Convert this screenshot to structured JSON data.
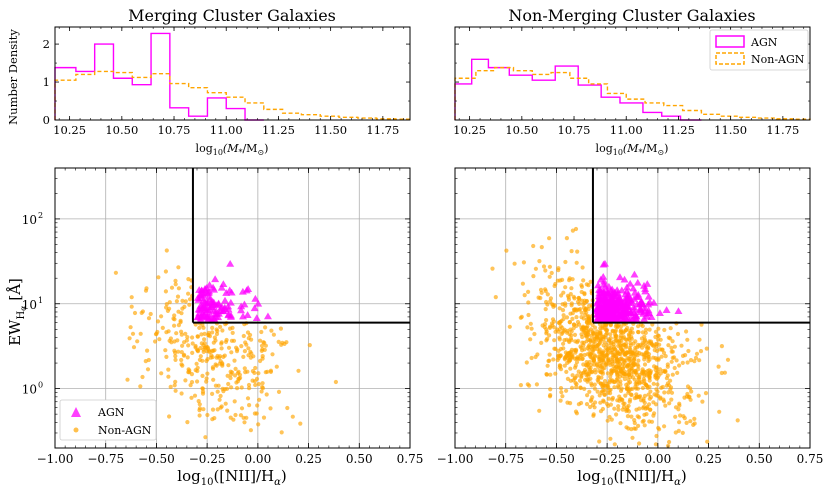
{
  "chart_data": [
    {
      "id": "hist-merging",
      "type": "histogram",
      "title": "Merging Cluster Galaxies",
      "xlabel": "log10(M*/M⊙)",
      "ylabel": "Number Density",
      "xlim": [
        10.18,
        11.88
      ],
      "ylim": [
        0,
        2.45
      ],
      "xticks": [
        10.25,
        10.5,
        10.75,
        11.0,
        11.25,
        11.5,
        11.75
      ],
      "xtick_labels": [
        "10.25",
        "10.50",
        "10.75",
        "11.00",
        "11.25",
        "11.50",
        "11.75"
      ],
      "yticks": [
        0,
        1,
        2
      ],
      "ytick_labels": [
        "0",
        "1",
        "2"
      ],
      "series": [
        {
          "name": "AGN",
          "style": "solid",
          "color": "#ff00ff",
          "edges": [
            10.18,
            10.28,
            10.37,
            10.46,
            10.55,
            10.64,
            10.73,
            10.82,
            10.91,
            11.0,
            11.09,
            11.18
          ],
          "values": [
            1.38,
            1.28,
            2.0,
            1.1,
            0.93,
            2.28,
            0.32,
            0.1,
            0.58,
            0.3,
            0.0
          ]
        },
        {
          "name": "Non-AGN",
          "style": "dashed",
          "color": "#ffa500",
          "edges": [
            10.18,
            10.28,
            10.37,
            10.46,
            10.55,
            10.64,
            10.73,
            10.82,
            10.91,
            11.0,
            11.09,
            11.18,
            11.27,
            11.36,
            11.45,
            11.54,
            11.63,
            11.72,
            11.81,
            11.88
          ],
          "values": [
            1.05,
            1.2,
            1.28,
            1.25,
            1.12,
            1.22,
            0.96,
            0.85,
            0.72,
            0.6,
            0.45,
            0.28,
            0.18,
            0.14,
            0.1,
            0.07,
            0.05,
            0.03,
            0.02
          ]
        }
      ]
    },
    {
      "id": "hist-nonmerging",
      "type": "histogram",
      "title": "Non-Merging Cluster Galaxies",
      "xlabel": "log10(M*/M⊙)",
      "ylabel": "",
      "xlim": [
        10.18,
        11.88
      ],
      "ylim": [
        0,
        2.45
      ],
      "xticks": [
        10.25,
        10.5,
        10.75,
        11.0,
        11.25,
        11.5,
        11.75
      ],
      "xtick_labels": [
        "10.25",
        "10.50",
        "10.75",
        "11.00",
        "11.25",
        "11.50",
        "11.75"
      ],
      "yticks": [
        0,
        1,
        2
      ],
      "ytick_labels": [
        "",
        "",
        ""
      ],
      "legend": {
        "position": "top-right",
        "entries": [
          "AGN",
          "Non-AGN"
        ]
      },
      "series": [
        {
          "name": "AGN",
          "style": "solid",
          "color": "#ff00ff",
          "edges": [
            10.18,
            10.26,
            10.34,
            10.44,
            10.55,
            10.66,
            10.77,
            10.88,
            10.97,
            11.08,
            11.17,
            11.26,
            11.36
          ],
          "values": [
            0.95,
            1.6,
            1.38,
            1.18,
            1.05,
            1.42,
            0.92,
            0.6,
            0.45,
            0.2,
            0.1,
            0.0
          ]
        },
        {
          "name": "Non-AGN",
          "style": "dashed",
          "color": "#ffa500",
          "edges": [
            10.18,
            10.28,
            10.37,
            10.46,
            10.55,
            10.64,
            10.73,
            10.82,
            10.91,
            11.0,
            11.09,
            11.18,
            11.27,
            11.36,
            11.45,
            11.54,
            11.63,
            11.72,
            11.81,
            11.88
          ],
          "values": [
            1.1,
            1.3,
            1.38,
            1.3,
            1.2,
            1.25,
            1.1,
            0.95,
            0.7,
            0.55,
            0.45,
            0.38,
            0.25,
            0.15,
            0.1,
            0.07,
            0.05,
            0.03,
            0.02
          ]
        }
      ]
    },
    {
      "id": "bpt-merging",
      "type": "scatter",
      "xlabel": "log10([NII]/Hα)",
      "ylabel": "EW_Hα [Å]",
      "xlim": [
        -1.0,
        0.75
      ],
      "ylim_log10": [
        -0.7,
        2.6
      ],
      "yscale": "log",
      "xticks": [
        -1.0,
        -0.75,
        -0.5,
        -0.25,
        0.0,
        0.25,
        0.5,
        0.75
      ],
      "xtick_labels": [
        "−1.00",
        "−0.75",
        "−0.50",
        "−0.25",
        "0.00",
        "0.25",
        "0.50",
        "0.75"
      ],
      "yticks_log10": [
        0,
        1,
        2
      ],
      "ytick_labels": [
        "10",
        "10",
        "10"
      ],
      "ytick_exponents": [
        "0",
        "1",
        "2"
      ],
      "boundary": {
        "x": -0.32,
        "y": 6
      },
      "legend": {
        "position": "bottom-left",
        "entries": [
          "AGN",
          "Non-AGN"
        ]
      },
      "agn_count": 110,
      "nonagn_count": 420
    },
    {
      "id": "bpt-nonmerging",
      "type": "scatter",
      "xlabel": "log10([NII]/Hα)",
      "ylabel": "",
      "xlim": [
        -1.0,
        0.75
      ],
      "ylim_log10": [
        -0.7,
        2.6
      ],
      "yscale": "log",
      "xticks": [
        -1.0,
        -0.75,
        -0.5,
        -0.25,
        0.0,
        0.25,
        0.5,
        0.75
      ],
      "xtick_labels": [
        "−1.00",
        "−0.75",
        "−0.50",
        "−0.25",
        "0.00",
        "0.25",
        "0.50",
        "0.75"
      ],
      "yticks_log10": [
        0,
        1,
        2
      ],
      "boundary": {
        "x": -0.32,
        "y": 6
      },
      "agn_count": 300,
      "nonagn_count": 1300
    }
  ],
  "labels": {
    "title_left": "Merging Cluster Galaxies",
    "title_right": "Non-Merging Cluster Galaxies",
    "hist_ylabel": "Number Density",
    "hist_xlabel_log": "log",
    "hist_xlabel_sub": "10",
    "hist_xlabel_rest": "(M",
    "hist_xlabel_star": "*",
    "hist_xlabel_slash": "/M",
    "hist_xlabel_sun": "⊙",
    "hist_xlabel_close": ")",
    "scatter_xlabel_log": "log",
    "scatter_xlabel_sub": "10",
    "scatter_xlabel_rest": "([NII]/H",
    "scatter_xlabel_alpha": "α",
    "scatter_xlabel_close": ")",
    "scatter_ylabel_ew": "EW",
    "scatter_ylabel_sub": "H",
    "scatter_ylabel_subalpha": "α",
    "scatter_ylabel_unit": " [Å]",
    "legend_agn": "AGN",
    "legend_nonagn": "Non-AGN"
  },
  "colors": {
    "agn": "#ff00ff",
    "nonagn": "#ffa500",
    "grid": "#b0b0b0"
  }
}
